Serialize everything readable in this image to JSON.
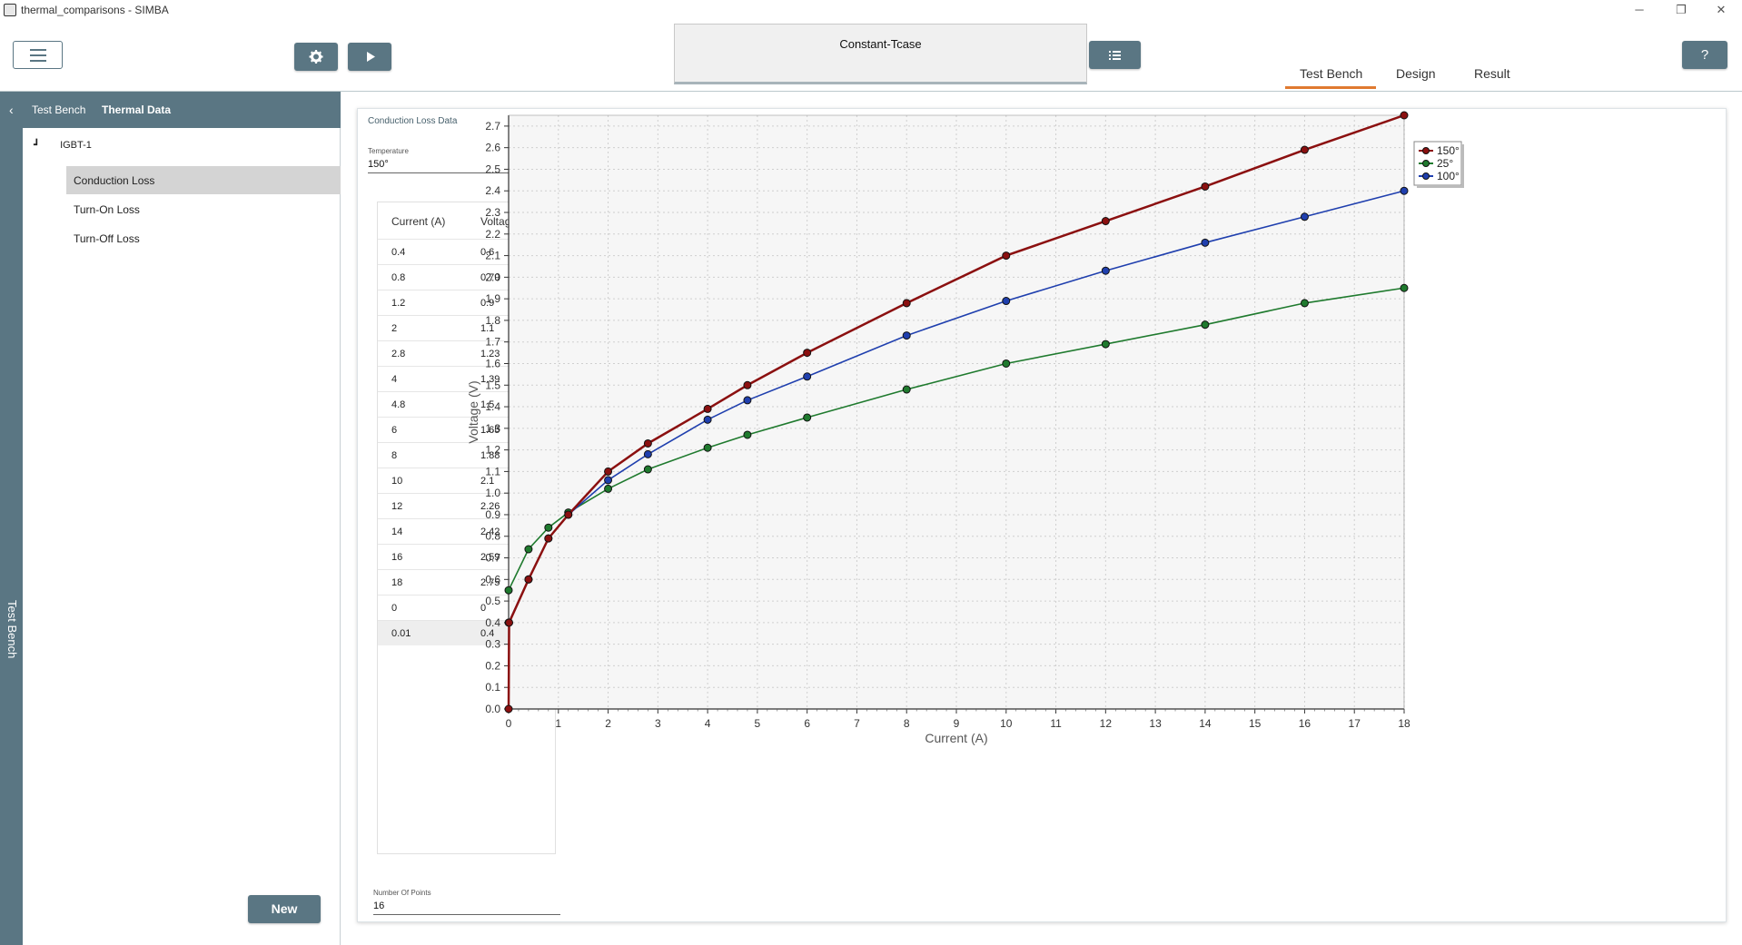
{
  "window": {
    "title": "thermal_comparisons - SIMBA",
    "minimize": "─",
    "restore": "❐",
    "close": "✕"
  },
  "toolbar": {
    "settings_icon": "gear-icon",
    "run_icon": "play-icon",
    "list_icon": "list-icon",
    "help_label": "?",
    "scenario_name": "Constant-Tcase"
  },
  "top_tabs": [
    {
      "label": "Test Bench",
      "active": true
    },
    {
      "label": "Design",
      "active": false
    },
    {
      "label": "Result",
      "active": false
    }
  ],
  "left": {
    "vertical_label": "Test Bench",
    "breadcrumb": [
      "Test Bench",
      "Thermal Data"
    ],
    "tree_root": "IGBT-1",
    "tree_items": [
      "Conduction Loss",
      "Turn-On Loss",
      "Turn-Off Loss"
    ],
    "selected_item": "Conduction Loss",
    "new_button": "New"
  },
  "main": {
    "card_title": "Conduction Loss Data",
    "temperature_label": "Temperature",
    "temperature_value": "150°",
    "table_headers": [
      "Current (A)",
      "Voltage (V)"
    ],
    "table_rows": [
      [
        "0.4",
        "0.6"
      ],
      [
        "0.8",
        "0.79"
      ],
      [
        "1.2",
        "0.9"
      ],
      [
        "2",
        "1.1"
      ],
      [
        "2.8",
        "1.23"
      ],
      [
        "4",
        "1.39"
      ],
      [
        "4.8",
        "1.5"
      ],
      [
        "6",
        "1.65"
      ],
      [
        "8",
        "1.88"
      ],
      [
        "10",
        "2.1"
      ],
      [
        "12",
        "2.26"
      ],
      [
        "14",
        "2.42"
      ],
      [
        "16",
        "2.59"
      ],
      [
        "18",
        "2.75"
      ],
      [
        "0",
        "0"
      ],
      [
        "0.01",
        "0.4"
      ]
    ],
    "selected_row": 15,
    "points_label": "Number Of Points",
    "points_value": "16"
  },
  "chart_data": {
    "type": "line",
    "xlabel": "Current (A)",
    "ylabel": "Voltage (V)",
    "xlim": [
      0,
      18
    ],
    "ylim": [
      0,
      2.75
    ],
    "xticks": [
      0,
      1,
      2,
      3,
      4,
      5,
      6,
      7,
      8,
      9,
      10,
      11,
      12,
      13,
      14,
      15,
      16,
      17,
      18
    ],
    "yticks": [
      "0.0",
      "0.1",
      "0.2",
      "0.3",
      "0.4",
      "0.5",
      "0.6",
      "0.7",
      "0.8",
      "0.9",
      "1.0",
      "1.1",
      "1.2",
      "1.3",
      "1.4",
      "1.5",
      "1.6",
      "1.7",
      "1.8",
      "1.9",
      "2.0",
      "2.1",
      "2.2",
      "2.3",
      "2.4",
      "2.5",
      "2.6",
      "2.7"
    ],
    "grid": true,
    "legend_position": "top-right",
    "series": [
      {
        "name": "150°",
        "color": "#8b1010",
        "width": 2.5,
        "x": [
          0,
          0.01,
          0.4,
          0.8,
          1.2,
          2,
          2.8,
          4,
          4.8,
          6,
          8,
          10,
          12,
          14,
          16,
          18
        ],
        "y": [
          0,
          0.4,
          0.6,
          0.79,
          0.9,
          1.1,
          1.23,
          1.39,
          1.5,
          1.65,
          1.88,
          2.1,
          2.26,
          2.42,
          2.59,
          2.75
        ]
      },
      {
        "name": "25°",
        "color": "#1f7a2e",
        "width": 1.6,
        "x": [
          0,
          0.4,
          0.8,
          1.2,
          2,
          2.8,
          4,
          4.8,
          6,
          8,
          10,
          12,
          14,
          16,
          18
        ],
        "y": [
          0.55,
          0.74,
          0.84,
          0.91,
          1.02,
          1.11,
          1.21,
          1.27,
          1.35,
          1.48,
          1.6,
          1.69,
          1.78,
          1.88,
          1.95
        ]
      },
      {
        "name": "100°",
        "color": "#1f3fae",
        "width": 1.6,
        "x": [
          0,
          0.4,
          0.8,
          1.2,
          2,
          2.8,
          4,
          4.8,
          6,
          8,
          10,
          12,
          14,
          16,
          18
        ],
        "y": [
          0.4,
          0.6,
          0.79,
          0.9,
          1.06,
          1.18,
          1.34,
          1.43,
          1.54,
          1.73,
          1.89,
          2.03,
          2.16,
          2.28,
          2.4
        ]
      }
    ]
  }
}
